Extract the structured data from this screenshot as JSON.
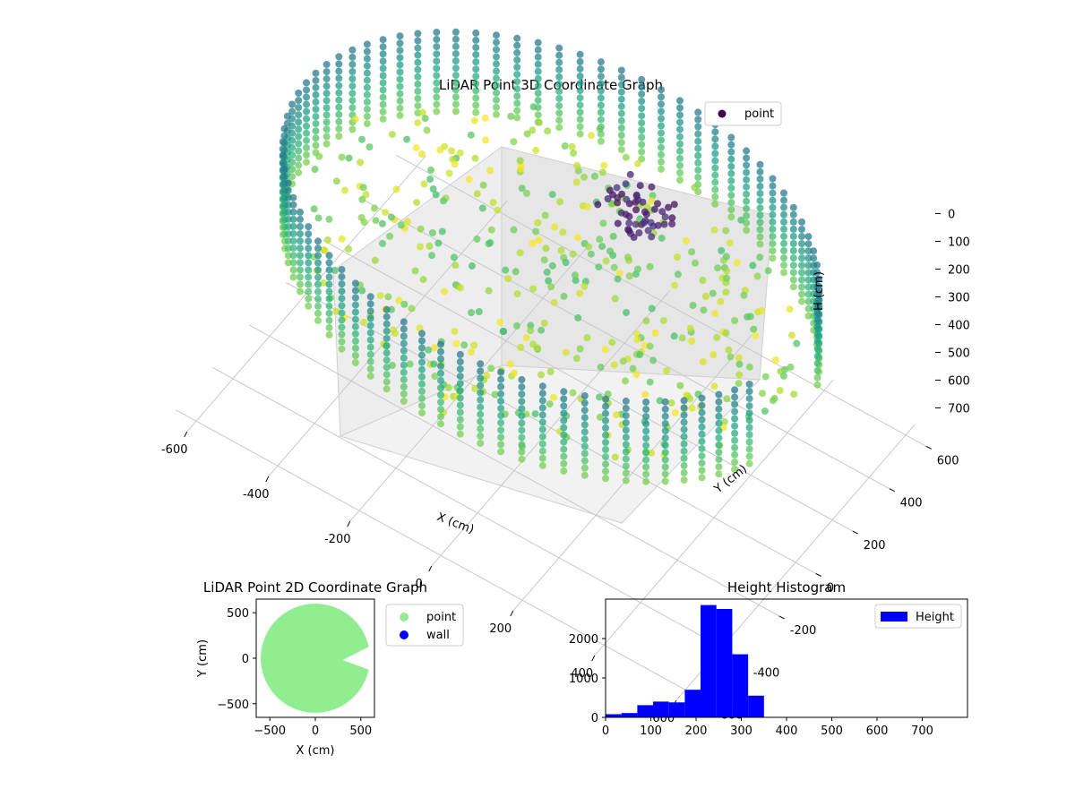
{
  "chart_data": [
    {
      "type": "scatter",
      "projection": "3d",
      "title": "LiDAR Point 3D Coordinate Graph",
      "xlabel": "X (cm)",
      "ylabel": "Y (cm)",
      "zlabel": "H (cm)",
      "xlim": [
        -650,
        650
      ],
      "ylim": [
        -650,
        650
      ],
      "zlim": [
        0,
        800
      ],
      "z_inverted": true,
      "xticks": [
        "-600",
        "-400",
        "-200",
        "0",
        "200",
        "400",
        "600"
      ],
      "yticks": [
        "-600",
        "-400",
        "-200",
        "0",
        "200",
        "400",
        "600"
      ],
      "zticks": [
        "0",
        "100",
        "200",
        "300",
        "400",
        "500",
        "600",
        "700"
      ],
      "colormap": "viridis",
      "legend": [
        {
          "label": "point",
          "color": "#440154"
        }
      ],
      "legend_position": "upper right",
      "grid": true,
      "shape": "circular room point cloud, radius about 620 cm, wall heights 0–350 cm, opening toward +X",
      "series": [
        {
          "name": "point",
          "color": "#440154"
        }
      ]
    },
    {
      "type": "scatter",
      "title": "LiDAR Point 2D Coordinate Graph",
      "xlabel": "X (cm)",
      "ylabel": "Y (cm)",
      "xlim": [
        -650,
        650
      ],
      "ylim": [
        -650,
        650
      ],
      "xticks": [
        "−500",
        "0",
        "500"
      ],
      "yticks": [
        "−500",
        "0",
        "500"
      ],
      "legend": [
        {
          "label": "point",
          "color": "#90ee90"
        },
        {
          "label": "wall",
          "color": "#0000ff"
        }
      ],
      "legend_position": "outside right",
      "series": [
        {
          "name": "point",
          "color": "#90ee90",
          "fill": "disk radius ~600 cm with wedge opening toward +X"
        },
        {
          "name": "wall",
          "color": "#0000ff"
        }
      ]
    },
    {
      "type": "bar",
      "subtype": "histogram",
      "title": "Height Histogram",
      "xlim": [
        0,
        800
      ],
      "ylim": [
        0,
        3000
      ],
      "xticks": [
        "0",
        "100",
        "200",
        "300",
        "400",
        "500",
        "600",
        "700"
      ],
      "yticks": [
        "0",
        "1000",
        "2000"
      ],
      "legend": [
        {
          "label": "Height",
          "color": "#0000ff"
        }
      ],
      "legend_position": "upper right",
      "bin_width": 35,
      "bins": [
        {
          "x0": 0,
          "x1": 35,
          "count": 80
        },
        {
          "x0": 35,
          "x1": 70,
          "count": 110
        },
        {
          "x0": 70,
          "x1": 105,
          "count": 310
        },
        {
          "x0": 105,
          "x1": 140,
          "count": 400
        },
        {
          "x0": 140,
          "x1": 175,
          "count": 380
        },
        {
          "x0": 175,
          "x1": 210,
          "count": 700
        },
        {
          "x0": 210,
          "x1": 245,
          "count": 2850
        },
        {
          "x0": 245,
          "x1": 280,
          "count": 2750
        },
        {
          "x0": 280,
          "x1": 315,
          "count": 1600
        },
        {
          "x0": 315,
          "x1": 350,
          "count": 550
        }
      ],
      "series": [
        {
          "name": "Height",
          "color": "#0000ff"
        }
      ]
    }
  ]
}
